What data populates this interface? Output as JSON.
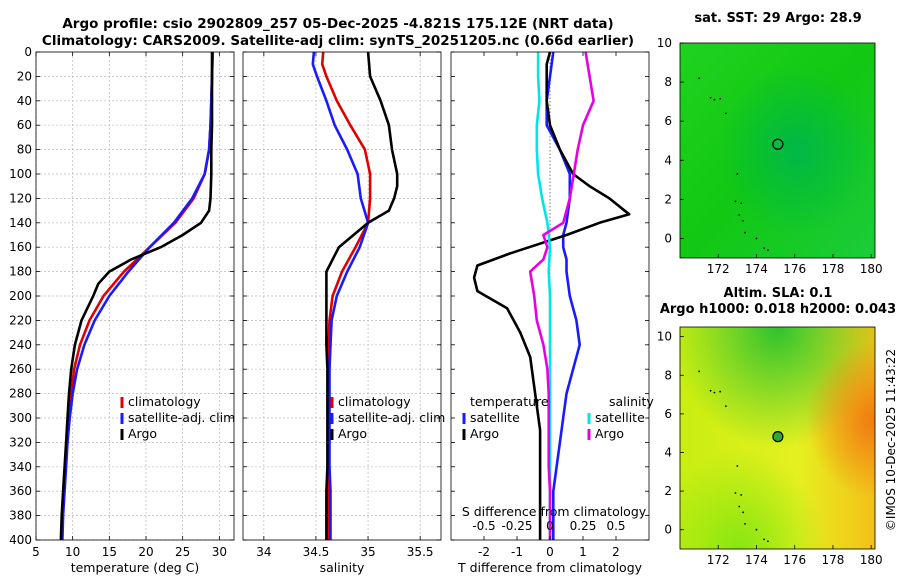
{
  "title_line1": "Argo profile: csio 2902809_257 05-Dec-2025 -4.821S 175.12E (NRT data)",
  "title_line2": "Climatology: CARS2009. Satellite-adj clim: synTS_20251205.nc (0.66d earlier)",
  "sst_title": "sat. SST: 29 Argo: 28.9",
  "sla_title1": "Altim. SLA: 0.1",
  "sla_title2": "Argo h1000: 0.018 h2000: 0.043",
  "side_label": "©IMOS 10-Dec-2025 11:43:22",
  "colors": {
    "climatology": "#e00000",
    "satellite": "#1a1aff",
    "argo": "#000000",
    "sat_diff": "#00e5e5",
    "argo_diff": "#e600e6"
  },
  "chart_data": [
    {
      "type": "line",
      "id": "temperature",
      "xlabel": "temperature (deg C)",
      "ylabel": "",
      "xlim": [
        5,
        32
      ],
      "ylim": [
        400,
        0
      ],
      "xticks": [
        5,
        10,
        15,
        20,
        25,
        30
      ],
      "yticks": [
        0,
        20,
        40,
        60,
        80,
        100,
        120,
        140,
        160,
        180,
        200,
        220,
        240,
        260,
        280,
        300,
        320,
        340,
        360,
        380,
        400
      ],
      "grid": true,
      "legend": [
        "climatology",
        "satellite-adj. clim",
        "Argo"
      ],
      "series": [
        {
          "name": "climatology",
          "color": "#e00000",
          "depth": [
            0,
            20,
            40,
            60,
            80,
            100,
            120,
            140,
            160,
            180,
            200,
            220,
            240,
            260,
            280,
            300,
            320,
            340,
            360,
            380,
            400
          ],
          "values": [
            29.1,
            29.0,
            28.9,
            28.8,
            28.6,
            28.0,
            26.5,
            24.0,
            20.5,
            17.0,
            14.2,
            12.3,
            11.0,
            10.2,
            9.8,
            9.5,
            9.2,
            9.0,
            8.8,
            8.6,
            8.5
          ]
        },
        {
          "name": "satellite-adj. clim",
          "color": "#1a1aff",
          "depth": [
            0,
            20,
            40,
            60,
            80,
            100,
            120,
            140,
            160,
            180,
            200,
            220,
            240,
            260,
            280,
            300,
            320,
            340,
            360,
            380,
            400
          ],
          "values": [
            29.1,
            29.0,
            28.9,
            28.8,
            28.6,
            28.0,
            26.3,
            23.8,
            20.5,
            17.6,
            15.0,
            13.0,
            11.6,
            10.6,
            10.0,
            9.6,
            9.3,
            9.1,
            8.9,
            8.7,
            8.6
          ]
        },
        {
          "name": "Argo",
          "color": "#000000",
          "depth": [
            0,
            20,
            40,
            60,
            80,
            100,
            120,
            130,
            140,
            150,
            160,
            170,
            180,
            190,
            200,
            220,
            240,
            260,
            280,
            300,
            320,
            340,
            360,
            380,
            400
          ],
          "values": [
            29.0,
            29.0,
            29.0,
            29.0,
            28.9,
            28.9,
            28.8,
            28.6,
            27.5,
            25.0,
            22.0,
            18.0,
            15.0,
            13.5,
            12.8,
            11.2,
            10.3,
            9.8,
            9.5,
            9.3,
            9.1,
            8.9,
            8.7,
            8.5,
            8.4
          ]
        }
      ]
    },
    {
      "type": "line",
      "id": "salinity",
      "xlabel": "salinity",
      "xlim": [
        33.8,
        35.7
      ],
      "ylim": [
        400,
        0
      ],
      "xticks": [
        34,
        34.5,
        35,
        35.5
      ],
      "yticks": [
        0,
        20,
        40,
        60,
        80,
        100,
        120,
        140,
        160,
        180,
        200,
        220,
        240,
        260,
        280,
        300,
        320,
        340,
        360,
        380,
        400
      ],
      "grid": true,
      "legend": [
        "climatology",
        "satellite-adj. clim",
        "Argo"
      ],
      "series": [
        {
          "name": "climatology",
          "color": "#e00000",
          "depth": [
            0,
            10,
            20,
            40,
            60,
            80,
            100,
            120,
            140,
            160,
            180,
            200,
            220,
            240,
            260,
            280,
            300,
            320,
            340,
            360,
            380,
            400
          ],
          "values": [
            34.57,
            34.56,
            34.6,
            34.7,
            34.83,
            34.97,
            35.02,
            35.02,
            35.0,
            34.88,
            34.75,
            34.66,
            34.63,
            34.62,
            34.62,
            34.62,
            34.62,
            34.62,
            34.62,
            34.62,
            34.62,
            34.62
          ]
        },
        {
          "name": "satellite-adj. clim",
          "color": "#1a1aff",
          "depth": [
            0,
            10,
            20,
            40,
            60,
            80,
            100,
            120,
            140,
            160,
            180,
            200,
            220,
            240,
            260,
            280,
            300,
            320,
            340,
            360,
            380,
            400
          ],
          "values": [
            34.48,
            34.47,
            34.51,
            34.6,
            34.68,
            34.8,
            34.9,
            34.93,
            35.0,
            34.92,
            34.8,
            34.7,
            34.65,
            34.64,
            34.63,
            34.63,
            34.63,
            34.63,
            34.63,
            34.64,
            34.64,
            34.64
          ]
        },
        {
          "name": "Argo",
          "color": "#000000",
          "depth": [
            0,
            20,
            40,
            60,
            80,
            100,
            110,
            120,
            130,
            140,
            160,
            180,
            200,
            220,
            240,
            260,
            280,
            300,
            320,
            340,
            360,
            380,
            400
          ],
          "values": [
            35.0,
            35.02,
            35.12,
            35.2,
            35.23,
            35.28,
            35.28,
            35.25,
            35.2,
            35.0,
            34.72,
            34.6,
            34.6,
            34.6,
            34.6,
            34.61,
            34.61,
            34.61,
            34.61,
            34.61,
            34.6,
            34.6,
            34.6
          ]
        }
      ]
    },
    {
      "type": "line",
      "id": "differences",
      "xlabel": "T difference from climatology",
      "xlabel2": "S difference from climatology",
      "xlim": [
        -3,
        3
      ],
      "ylim": [
        400,
        0
      ],
      "xticks": [
        -2,
        -1,
        0,
        1,
        2
      ],
      "xticks2": [
        -0.5,
        -0.25,
        0,
        0.25,
        0.5
      ],
      "yticks": [
        0,
        20,
        40,
        60,
        80,
        100,
        120,
        140,
        160,
        180,
        200,
        220,
        240,
        260,
        280,
        300,
        320,
        340,
        360,
        380,
        400
      ],
      "legend_temperature": {
        "heading": "temperature",
        "items": [
          "satellite",
          "Argo"
        ]
      },
      "legend_salinity": {
        "heading": "salinity",
        "items": [
          "satellite",
          "Argo"
        ]
      },
      "series": [
        {
          "name": "temperature satellite",
          "color": "#1a1aff",
          "depth": [
            0,
            20,
            40,
            60,
            80,
            100,
            120,
            140,
            150,
            160,
            170,
            180,
            200,
            220,
            240,
            260,
            280,
            300,
            320,
            340,
            360,
            380,
            400
          ],
          "values": [
            0.1,
            0.0,
            -0.1,
            -0.1,
            0.3,
            0.6,
            0.6,
            0.5,
            0.4,
            0.4,
            0.5,
            0.5,
            0.6,
            0.8,
            0.9,
            0.7,
            0.5,
            0.4,
            0.3,
            0.2,
            0.1,
            0.1,
            0.1
          ]
        },
        {
          "name": "temperature Argo",
          "color": "#000000",
          "depth": [
            0,
            10,
            20,
            40,
            60,
            80,
            100,
            110,
            120,
            133,
            140,
            150,
            165,
            175,
            185,
            196,
            210,
            230,
            250,
            270,
            290,
            310,
            330,
            350,
            380,
            400
          ],
          "values": [
            0.0,
            -0.1,
            -0.1,
            -0.1,
            0.0,
            0.3,
            0.7,
            1.2,
            1.8,
            2.4,
            1.5,
            0.5,
            -1.2,
            -2.2,
            -2.3,
            -2.2,
            -1.3,
            -0.9,
            -0.6,
            -0.5,
            -0.4,
            -0.3,
            -0.3,
            -0.3,
            -0.3,
            -0.3
          ]
        },
        {
          "name": "salinity satellite",
          "color": "#00e5e5",
          "depth": [
            0,
            20,
            40,
            60,
            80,
            100,
            120,
            140,
            160,
            180,
            200,
            220,
            240,
            260,
            280,
            300,
            320,
            340,
            360,
            380,
            400
          ],
          "values": [
            -0.09,
            -0.09,
            -0.08,
            -0.1,
            -0.1,
            -0.09,
            -0.06,
            -0.02,
            0.0,
            -0.01,
            0.0,
            0.0,
            0.0,
            0.0,
            0.0,
            0.0,
            0.0,
            0.0,
            0.0,
            0.0,
            0.0
          ]
        },
        {
          "name": "salinity Argo",
          "color": "#e600e6",
          "depth": [
            0,
            20,
            40,
            60,
            80,
            100,
            120,
            140,
            150,
            160,
            170,
            180,
            200,
            220,
            240,
            260,
            280,
            300,
            320,
            340,
            360,
            380,
            400
          ],
          "values": [
            0.27,
            0.3,
            0.33,
            0.25,
            0.21,
            0.18,
            0.15,
            0.1,
            -0.05,
            -0.02,
            -0.05,
            -0.15,
            -0.12,
            -0.1,
            -0.05,
            -0.02,
            -0.01,
            -0.01,
            -0.01,
            -0.01,
            0.0,
            0.0,
            0.0
          ]
        }
      ]
    },
    {
      "type": "heatmap",
      "id": "sst_map",
      "title": "sat. SST: 29 Argo: 28.9",
      "xlim": [
        170,
        180.2
      ],
      "ylim": [
        -1,
        10
      ],
      "xticks": [
        172,
        174,
        176,
        178,
        180
      ],
      "yticks": [
        0,
        2,
        4,
        6,
        8,
        10
      ],
      "marker": {
        "lon": 175.12,
        "lat": 4.82,
        "style": "open-circle"
      }
    },
    {
      "type": "heatmap",
      "id": "sla_map",
      "title": "Altim. SLA: 0.1",
      "subtitle": "Argo h1000: 0.018 h2000: 0.043",
      "xlim": [
        170,
        180.2
      ],
      "ylim": [
        -1,
        10.5
      ],
      "xticks": [
        172,
        174,
        176,
        178,
        180
      ],
      "yticks": [
        0,
        2,
        4,
        6,
        8,
        10
      ],
      "marker": {
        "lon": 175.12,
        "lat": 4.82,
        "style": "filled-circle"
      }
    }
  ]
}
